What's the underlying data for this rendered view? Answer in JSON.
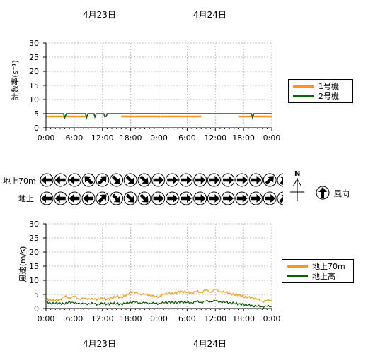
{
  "dates": {
    "day1": "4月23日",
    "day2": "4月24日"
  },
  "colors": {
    "unit1": "#f29b1d",
    "unit2": "#0f5f0f",
    "grid": "#bbbbbb",
    "axis": "#000000"
  },
  "count_chart": {
    "ylabel": "計数率(s⁻¹)",
    "yticks": [
      "0",
      "5",
      "10",
      "15",
      "20",
      "25",
      "30"
    ],
    "xticks": [
      "0:00",
      "6:00",
      "12:00",
      "18:00",
      "0:00",
      "6:00",
      "12:00",
      "18:00",
      "0:00"
    ],
    "legend": [
      "1号機",
      "2号機"
    ]
  },
  "wind_dir": {
    "row_labels": [
      "地上70m",
      "地上"
    ],
    "legend_label": "風向",
    "north_label": "N"
  },
  "wind_chart": {
    "ylabel": "風速(m/s)",
    "yticks": [
      "0",
      "5",
      "10",
      "15",
      "20",
      "25",
      "30"
    ],
    "xticks": [
      "0:00",
      "6:00",
      "12:00",
      "18:00",
      "0:00",
      "6:00",
      "12:00",
      "18:00",
      "0:00"
    ],
    "legend": [
      "地上70m",
      "地上高"
    ]
  },
  "chart_data": [
    {
      "type": "line",
      "ylabel": "計数率(s⁻¹)",
      "ylim": [
        0,
        30
      ],
      "x_unit": "hours from 4月23日 0:00",
      "xlim": [
        0,
        48
      ],
      "grid": true,
      "legend_position": "right",
      "series": [
        {
          "name": "1号機",
          "segments": [
            {
              "x": [
                0,
                9
              ],
              "y": [
                4,
                4
              ]
            },
            {
              "x": [
                16,
                33
              ],
              "y": [
                4,
                4
              ]
            },
            {
              "x": [
                41,
                48
              ],
              "y": [
                4,
                4
              ]
            }
          ]
        },
        {
          "name": "2号機",
          "values": [
            [
              0,
              5
            ],
            [
              3.7,
              5
            ],
            [
              4,
              3.6
            ],
            [
              4.3,
              5
            ],
            [
              8.4,
              5
            ],
            [
              8.6,
              3.5
            ],
            [
              8.9,
              5
            ],
            [
              10.2,
              5
            ],
            [
              10.4,
              3.8
            ],
            [
              10.7,
              5
            ],
            [
              12.3,
              5
            ],
            [
              12.5,
              3.9
            ],
            [
              12.8,
              4
            ],
            [
              13,
              5
            ],
            [
              43.7,
              5
            ],
            [
              43.9,
              3.6
            ],
            [
              44.2,
              5
            ],
            [
              48,
              5
            ]
          ]
        }
      ]
    },
    {
      "type": "table",
      "title": "風向",
      "rows": [
        {
          "name": "地上70m",
          "directions_deg": [
            270,
            270,
            270,
            315,
            45,
            135,
            135,
            135,
            90,
            90,
            90,
            90,
            90,
            90,
            90,
            90,
            45,
            30
          ]
        },
        {
          "name": "地上",
          "directions_deg": [
            270,
            270,
            270,
            270,
            45,
            135,
            135,
            135,
            90,
            90,
            90,
            90,
            90,
            90,
            90,
            90,
            90,
            45
          ]
        }
      ]
    },
    {
      "type": "line",
      "ylabel": "風速(m/s)",
      "ylim": [
        0,
        30
      ],
      "x_unit": "hours from 4月23日 0:00",
      "xlim": [
        0,
        48
      ],
      "grid": true,
      "legend_position": "right",
      "series": [
        {
          "name": "地上70m",
          "values": [
            [
              0,
              3.5
            ],
            [
              1,
              3
            ],
            [
              2,
              2.8
            ],
            [
              3,
              3.2
            ],
            [
              4,
              4.3
            ],
            [
              5,
              3.8
            ],
            [
              6,
              4.2
            ],
            [
              7,
              3.5
            ],
            [
              8,
              3.4
            ],
            [
              9,
              3.6
            ],
            [
              10,
              3.2
            ],
            [
              11,
              3.4
            ],
            [
              12,
              3.6
            ],
            [
              13,
              3.3
            ],
            [
              14,
              3.8
            ],
            [
              15,
              4.2
            ],
            [
              16,
              4
            ],
            [
              17,
              4.5
            ],
            [
              18,
              6
            ],
            [
              19,
              5.5
            ],
            [
              20,
              5.2
            ],
            [
              21,
              5
            ],
            [
              22,
              4.8
            ],
            [
              23,
              4.2
            ],
            [
              24,
              4.3
            ],
            [
              25,
              5
            ],
            [
              26,
              5.5
            ],
            [
              27,
              5.2
            ],
            [
              28,
              5.8
            ],
            [
              29,
              6
            ],
            [
              30,
              5.7
            ],
            [
              31,
              5.5
            ],
            [
              32,
              6
            ],
            [
              33,
              5.8
            ],
            [
              34,
              6.5
            ],
            [
              35,
              5.8
            ],
            [
              36,
              6.8
            ],
            [
              37,
              6
            ],
            [
              38,
              5.8
            ],
            [
              39,
              5.5
            ],
            [
              40,
              4.8
            ],
            [
              41,
              4.8
            ],
            [
              42,
              4.2
            ],
            [
              43,
              4
            ],
            [
              44,
              3.8
            ],
            [
              45,
              3.2
            ],
            [
              46,
              2.5
            ],
            [
              47,
              2.8
            ],
            [
              48,
              3
            ]
          ]
        },
        {
          "name": "地上高",
          "values": [
            [
              0,
              2.5
            ],
            [
              1,
              1.8
            ],
            [
              2,
              1.8
            ],
            [
              3,
              2
            ],
            [
              4,
              1.5
            ],
            [
              5,
              2.5
            ],
            [
              6,
              1.8
            ],
            [
              7,
              2
            ],
            [
              8,
              1.5
            ],
            [
              9,
              1.8
            ],
            [
              10,
              1.7
            ],
            [
              11,
              1.5
            ],
            [
              12,
              1.8
            ],
            [
              13,
              1.6
            ],
            [
              14,
              1.8
            ],
            [
              15,
              1.7
            ],
            [
              16,
              1.6
            ],
            [
              17,
              1.8
            ],
            [
              18,
              2.3
            ],
            [
              19,
              2.2
            ],
            [
              20,
              2
            ],
            [
              21,
              2
            ],
            [
              22,
              1.9
            ],
            [
              23,
              1.8
            ],
            [
              24,
              1.8
            ],
            [
              25,
              2
            ],
            [
              26,
              2.3
            ],
            [
              27,
              2.1
            ],
            [
              28,
              2.2
            ],
            [
              29,
              2.3
            ],
            [
              30,
              2.2
            ],
            [
              31,
              2
            ],
            [
              32,
              2.5
            ],
            [
              33,
              2.2
            ],
            [
              34,
              2.6
            ],
            [
              35,
              2.5
            ],
            [
              36,
              2.7
            ],
            [
              37,
              2.4
            ],
            [
              38,
              2.2
            ],
            [
              39,
              2.1
            ],
            [
              40,
              1.8
            ],
            [
              41,
              1.6
            ],
            [
              42,
              1.4
            ],
            [
              43,
              1.2
            ],
            [
              44,
              1
            ],
            [
              45,
              0.8
            ],
            [
              46,
              0.7
            ],
            [
              47,
              0.8
            ],
            [
              48,
              0.8
            ]
          ]
        }
      ]
    }
  ]
}
